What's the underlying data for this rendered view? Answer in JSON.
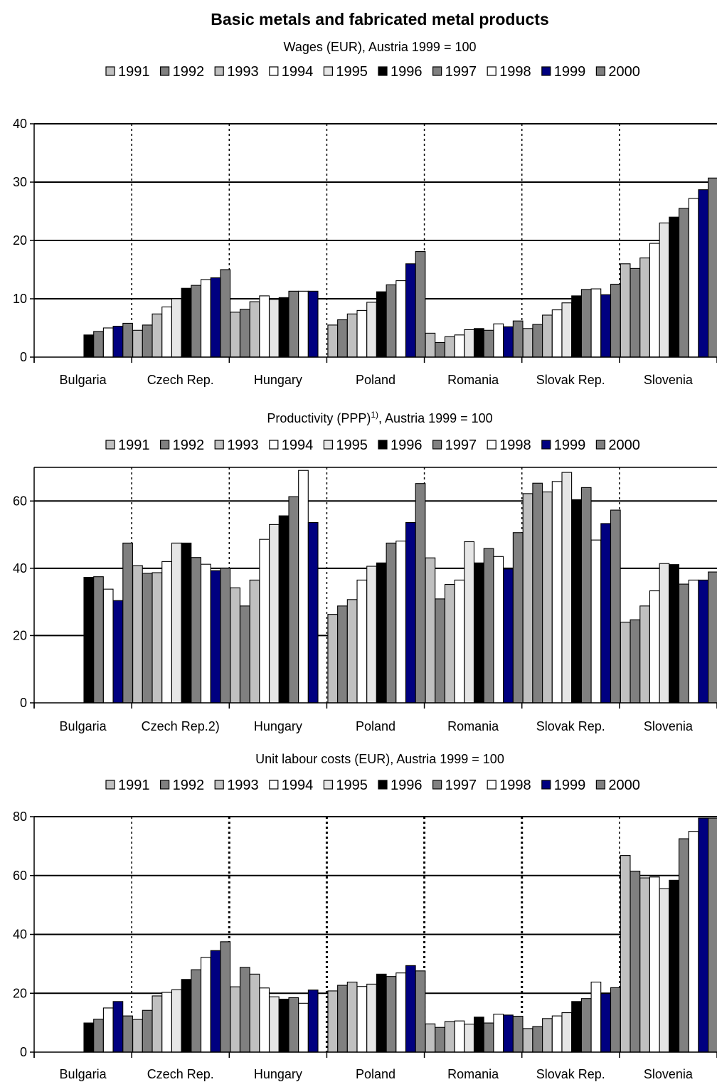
{
  "page_title": "Basic metals and fabricated metal products",
  "colors": {
    "1991": "#c0c0c0",
    "1992": "#808080",
    "1993": "#c0c0c0",
    "1994": "#ffffff",
    "1995": "#e6e6e6",
    "1996": "#000000",
    "1997": "#808080",
    "1998": "#ffffff",
    "1999": "#000080",
    "2000": "#808080"
  },
  "chart_data": [
    {
      "type": "bar",
      "title": "Wages (EUR), Austria 1999 = 100",
      "legend": [
        "1991",
        "1992",
        "1993",
        "1994",
        "1995",
        "1996",
        "1997",
        "1998",
        "1999",
        "2000"
      ],
      "categories": [
        "Bulgaria",
        "Czech Rep.",
        "Hungary",
        "Poland",
        "Romania",
        "Slovak Rep.",
        "Slovenia"
      ],
      "ylim": [
        0,
        40
      ],
      "yticks": [
        "0",
        "10",
        "20",
        "30",
        "40"
      ],
      "grid": true,
      "series": [
        {
          "name": "1991",
          "values": [
            null,
            4.6,
            7.7,
            5.5,
            4.1,
            4.9,
            16.0
          ]
        },
        {
          "name": "1992",
          "values": [
            null,
            5.5,
            8.2,
            6.4,
            2.5,
            5.6,
            15.2
          ]
        },
        {
          "name": "1993",
          "values": [
            null,
            7.4,
            9.5,
            7.4,
            3.5,
            7.2,
            17.0
          ]
        },
        {
          "name": "1994",
          "values": [
            null,
            8.6,
            10.5,
            8.0,
            3.8,
            8.1,
            19.5
          ]
        },
        {
          "name": "1995",
          "values": [
            null,
            10.0,
            9.9,
            9.4,
            4.7,
            9.3,
            23.0
          ]
        },
        {
          "name": "1996",
          "values": [
            3.8,
            11.8,
            10.2,
            11.2,
            4.9,
            10.5,
            24.0
          ]
        },
        {
          "name": "1997",
          "values": [
            4.4,
            12.3,
            11.3,
            12.4,
            4.6,
            11.6,
            25.5
          ]
        },
        {
          "name": "1998",
          "values": [
            5.0,
            13.3,
            11.3,
            13.1,
            5.7,
            11.7,
            27.2
          ]
        },
        {
          "name": "1999",
          "values": [
            5.3,
            13.6,
            11.3,
            16.0,
            5.2,
            10.7,
            28.7
          ]
        },
        {
          "name": "2000",
          "values": [
            5.8,
            15.0,
            null,
            18.1,
            6.2,
            12.5,
            30.7
          ]
        }
      ]
    },
    {
      "type": "bar",
      "title": "Productivity (PPP)",
      "title_sup": "1)",
      "title_suffix": ", Austria 1999 = 100",
      "legend": [
        "1991",
        "1992",
        "1993",
        "1994",
        "1995",
        "1996",
        "1997",
        "1998",
        "1999",
        "2000"
      ],
      "categories": [
        "Bulgaria",
        "Czech Rep.2)",
        "Hungary",
        "Poland",
        "Romania",
        "Slovak Rep.",
        "Slovenia"
      ],
      "ylim": [
        0,
        70
      ],
      "yticks": [
        "0",
        "20",
        "40",
        "60"
      ],
      "ytick_values": [
        0,
        20,
        40,
        60
      ],
      "grid": true,
      "series": [
        {
          "name": "1991",
          "values": [
            null,
            40.8,
            34.2,
            26.3,
            43.1,
            62.2,
            24.0
          ]
        },
        {
          "name": "1992",
          "values": [
            null,
            38.5,
            28.8,
            28.8,
            30.9,
            65.3,
            24.7
          ]
        },
        {
          "name": "1993",
          "values": [
            null,
            38.7,
            36.5,
            30.7,
            35.2,
            62.7,
            28.8
          ]
        },
        {
          "name": "1994",
          "values": [
            null,
            42.0,
            48.6,
            36.5,
            36.5,
            65.8,
            33.3
          ]
        },
        {
          "name": "1995",
          "values": [
            null,
            47.5,
            53.0,
            40.6,
            47.9,
            68.5,
            41.4
          ]
        },
        {
          "name": "1996",
          "values": [
            37.3,
            47.5,
            55.6,
            41.6,
            41.6,
            60.4,
            41.1
          ]
        },
        {
          "name": "1997",
          "values": [
            37.5,
            43.2,
            61.3,
            47.5,
            45.9,
            64.0,
            35.3
          ]
        },
        {
          "name": "1998",
          "values": [
            33.8,
            41.2,
            69.1,
            48.1,
            43.5,
            48.4,
            36.5
          ]
        },
        {
          "name": "1999",
          "values": [
            30.4,
            39.3,
            53.6,
            53.6,
            39.8,
            53.3,
            36.5
          ]
        },
        {
          "name": "2000",
          "values": [
            47.5,
            40.0,
            null,
            65.2,
            50.6,
            57.3,
            38.9
          ]
        }
      ]
    },
    {
      "type": "bar",
      "title": "Unit labour costs (EUR), Austria 1999 = 100",
      "legend": [
        "1991",
        "1992",
        "1993",
        "1994",
        "1995",
        "1996",
        "1997",
        "1998",
        "1999",
        "2000"
      ],
      "categories": [
        "Bulgaria",
        "Czech Rep.",
        "Hungary",
        "Poland",
        "Romania",
        "Slovak Rep.",
        "Slovenia"
      ],
      "ylim": [
        0,
        80
      ],
      "yticks": [
        "0",
        "20",
        "40",
        "60",
        "80"
      ],
      "grid": true,
      "series": [
        {
          "name": "1991",
          "values": [
            null,
            11.1,
            22.2,
            20.8,
            9.6,
            8.0,
            66.8
          ]
        },
        {
          "name": "1992",
          "values": [
            null,
            14.2,
            28.8,
            22.7,
            8.4,
            8.7,
            61.5
          ]
        },
        {
          "name": "1993",
          "values": [
            null,
            19.1,
            26.5,
            23.8,
            10.4,
            11.4,
            59.2
          ]
        },
        {
          "name": "1994",
          "values": [
            null,
            20.3,
            21.8,
            22.3,
            10.6,
            12.3,
            59.5
          ]
        },
        {
          "name": "1995",
          "values": [
            null,
            21.2,
            18.8,
            23.1,
            9.5,
            13.4,
            55.5
          ]
        },
        {
          "name": "1996",
          "values": [
            9.9,
            24.7,
            18.0,
            26.5,
            11.9,
            17.2,
            58.4
          ]
        },
        {
          "name": "1997",
          "values": [
            11.2,
            28.0,
            18.5,
            25.7,
            9.9,
            18.2,
            72.5
          ]
        },
        {
          "name": "1998",
          "values": [
            15.0,
            32.2,
            16.6,
            26.9,
            12.9,
            23.8,
            75.0
          ]
        },
        {
          "name": "1999",
          "values": [
            17.2,
            34.5,
            21.1,
            29.4,
            12.6,
            19.9,
            79.5
          ]
        },
        {
          "name": "2000",
          "values": [
            12.3,
            37.5,
            null,
            27.6,
            12.2,
            21.9,
            79.5
          ]
        }
      ]
    }
  ]
}
